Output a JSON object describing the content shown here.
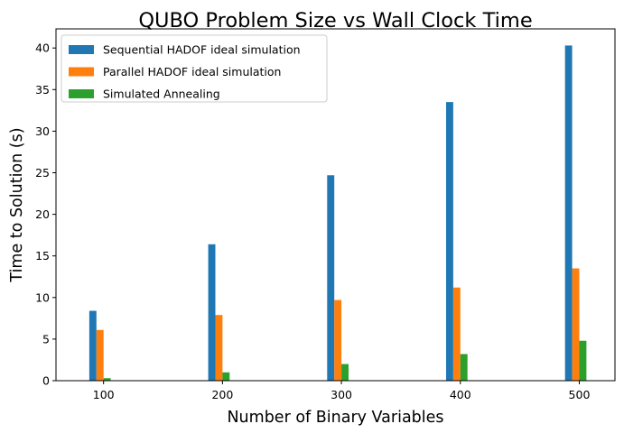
{
  "chart_data": {
    "type": "bar",
    "title": "QUBO Problem Size vs Wall Clock Time",
    "xlabel": "Number of Binary Variables",
    "ylabel": "Time to Solution (s)",
    "categories": [
      "100",
      "200",
      "300",
      "400",
      "500"
    ],
    "x_values": [
      100,
      200,
      300,
      400,
      500
    ],
    "ylim": [
      0,
      42.3
    ],
    "yticks": [
      0,
      5,
      10,
      15,
      20,
      25,
      30,
      35,
      40
    ],
    "grid": false,
    "legend_position": "top-left",
    "series": [
      {
        "name": "Sequential HADOF ideal simulation",
        "color": "#1f77b4",
        "values": [
          8.4,
          16.4,
          24.7,
          33.5,
          40.3
        ]
      },
      {
        "name": "Parallel HADOF ideal simulation",
        "color": "#ff7f0e",
        "values": [
          6.1,
          7.9,
          9.7,
          11.2,
          13.5
        ]
      },
      {
        "name": "Simulated Annealing",
        "color": "#2ca02c",
        "values": [
          0.3,
          1.0,
          2.0,
          3.2,
          4.8
        ]
      }
    ]
  }
}
